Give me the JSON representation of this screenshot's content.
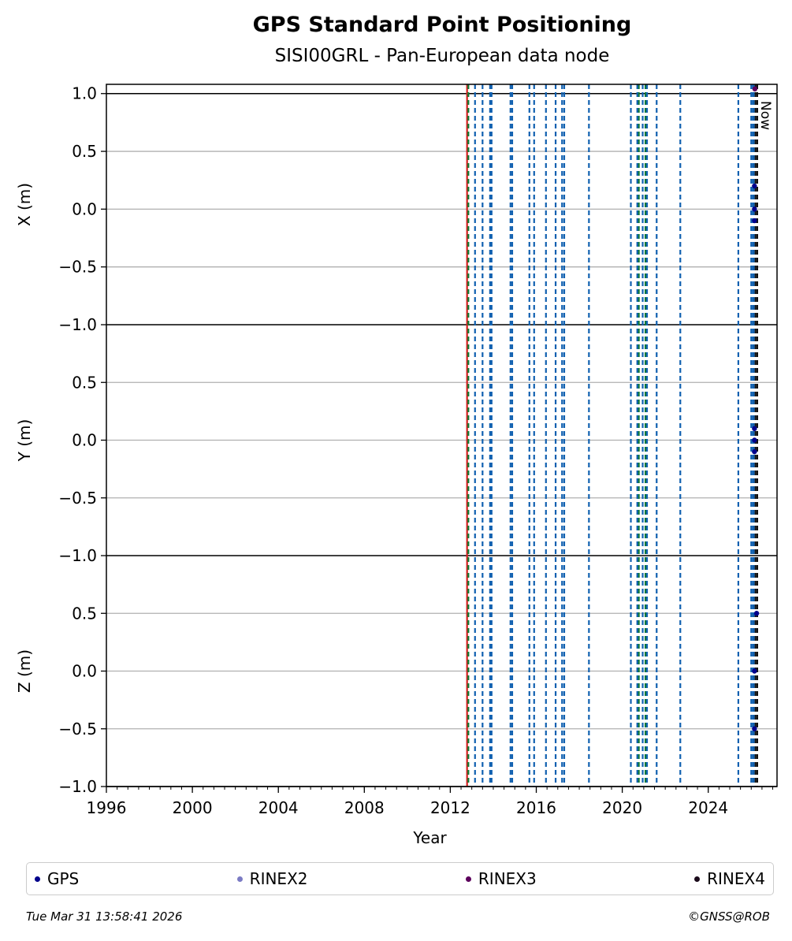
{
  "chart_data": {
    "type": "scatter",
    "title": "GPS Standard Point Positioning",
    "subtitle": "SISI00GRL - Pan-European data node",
    "xlabel": "Year",
    "xlim": [
      1996,
      2027.2
    ],
    "x_ticks": [
      1996,
      2000,
      2004,
      2008,
      2012,
      2016,
      2020,
      2024
    ],
    "x_minor_step": 0.5,
    "grid": true,
    "now_label": "Now",
    "now_x": 2026.25,
    "panels": [
      {
        "id": "x",
        "ylabel": "X (m)",
        "ylim": [
          -1.0,
          1.08
        ],
        "y_ticks": [
          1.0,
          0.5,
          0.0,
          -0.5,
          -1.0
        ],
        "tick_labels": [
          "1.0",
          "0.5",
          "0.0",
          "−0.5",
          "−1.0"
        ]
      },
      {
        "id": "y",
        "ylabel": "Y (m)",
        "ylim": [
          -1.0,
          1.0
        ],
        "y_ticks": [
          0.5,
          0.0,
          -0.5,
          -1.0
        ],
        "tick_labels": [
          "0.5",
          "0.0",
          "−0.5",
          "−1.0"
        ]
      },
      {
        "id": "z",
        "ylabel": "Z (m)",
        "ylim": [
          -1.0,
          1.0
        ],
        "y_ticks": [
          0.5,
          0.0,
          -0.5,
          -1.0
        ],
        "tick_labels": [
          "0.5",
          "0.0",
          "−0.5",
          "−1.0"
        ]
      }
    ],
    "vlines": {
      "red": [
        2012.78
      ],
      "green": [
        2012.84,
        2020.77,
        2021.08
      ],
      "blue": [
        2013.15,
        2013.5,
        2013.85,
        2013.92,
        2014.8,
        2014.88,
        2015.68,
        2015.9,
        2016.45,
        2016.9,
        2017.2,
        2017.3,
        2018.45,
        2020.4,
        2020.7,
        2020.95,
        2021.15,
        2021.6,
        2022.7,
        2025.4,
        2026.0,
        2026.08,
        2026.12
      ],
      "black": [
        2026.2,
        2026.28
      ]
    },
    "series": [
      {
        "name": "GPS",
        "color": "#00008b",
        "points": [
          {
            "panel": "x",
            "x": 2026.15,
            "y": 0.2
          },
          {
            "panel": "x",
            "x": 2026.15,
            "y": 0.0
          },
          {
            "panel": "x",
            "x": 2026.15,
            "y": -0.1
          },
          {
            "panel": "y",
            "x": 2026.15,
            "y": 0.1
          },
          {
            "panel": "y",
            "x": 2026.15,
            "y": 0.0
          },
          {
            "panel": "y",
            "x": 2026.15,
            "y": -0.1
          },
          {
            "panel": "z",
            "x": 2026.15,
            "y": 0.0
          },
          {
            "panel": "z",
            "x": 2026.15,
            "y": -0.5
          },
          {
            "panel": "z",
            "x": 2026.25,
            "y": 0.5
          }
        ]
      },
      {
        "name": "RINEX2",
        "color": "#7b7bc4",
        "points": []
      },
      {
        "name": "RINEX3",
        "color": "#5c005c",
        "points": [
          {
            "panel": "x",
            "x": 2026.17,
            "y": 1.04
          }
        ]
      },
      {
        "name": "RINEX4",
        "color": "#1a0a1a",
        "points": []
      }
    ]
  },
  "footer": {
    "timestamp": "Tue Mar 31 13:58:41 2026",
    "copyright": "©GNSS@ROB"
  }
}
